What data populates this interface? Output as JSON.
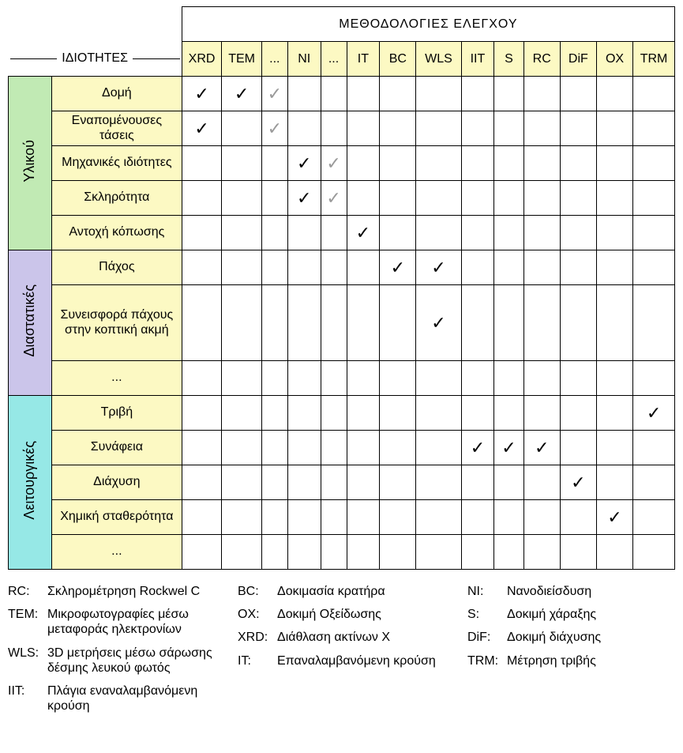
{
  "colors": {
    "header_bg": "#fcf9c3",
    "cat1_bg": "#c1eab4",
    "cat2_bg": "#cbc5ea",
    "cat3_bg": "#96e8e6",
    "gray_check": "#9a9a9a",
    "border": "#000000",
    "background": "#ffffff"
  },
  "fonts": {
    "base_size_pt": 12,
    "header_size_pt": 13
  },
  "header": {
    "methods_title": "ΜΕΘΟΔΟΛΟΓΙΕΣ ΕΛΕΓΧΟΥ",
    "properties_title": "ΙΔΙΟΤΗΤΕΣ"
  },
  "methods": [
    "XRD",
    "TEM",
    "...",
    "NI",
    "...",
    "IT",
    "BC",
    "WLS",
    "IIT",
    "S",
    "RC",
    "DiF",
    "OX",
    "TRM"
  ],
  "categories": [
    {
      "key": "material",
      "label": "Υλικού",
      "bg": "#c1eab4",
      "rows": [
        {
          "label": "Δομή",
          "cells": [
            "b",
            "b",
            "g",
            "",
            "",
            "",
            "",
            "",
            "",
            "",
            "",
            "",
            "",
            ""
          ]
        },
        {
          "label": "Εναπομένουσες τάσεις",
          "cells": [
            "b",
            "",
            "g",
            "",
            "",
            "",
            "",
            "",
            "",
            "",
            "",
            "",
            "",
            ""
          ]
        },
        {
          "label": "Μηχανικές ιδιότητες",
          "cells": [
            "",
            "",
            "",
            "b",
            "g",
            "",
            "",
            "",
            "",
            "",
            "",
            "",
            "",
            ""
          ]
        },
        {
          "label": "Σκληρότητα",
          "cells": [
            "",
            "",
            "",
            "b",
            "g",
            "",
            "",
            "",
            "",
            "",
            "",
            "",
            "",
            ""
          ]
        },
        {
          "label": "Αντοχή κόπωσης",
          "cells": [
            "",
            "",
            "",
            "",
            "",
            "b",
            "",
            "",
            "",
            "",
            "",
            "",
            "",
            ""
          ]
        }
      ]
    },
    {
      "key": "dimensional",
      "label": "Διαστατικές",
      "bg": "#cbc5ea",
      "rows": [
        {
          "label": "Πάχος",
          "cells": [
            "",
            "",
            "",
            "",
            "",
            "",
            "b",
            "b",
            "",
            "",
            "",
            "",
            "",
            ""
          ]
        },
        {
          "label": "Συνεισφορά πάχους στην κοπτική ακμή",
          "cells": [
            "",
            "",
            "",
            "",
            "",
            "",
            "",
            "b",
            "",
            "",
            "",
            "",
            "",
            ""
          ]
        },
        {
          "label": "...",
          "cells": [
            "",
            "",
            "",
            "",
            "",
            "",
            "",
            "",
            "",
            "",
            "",
            "",
            "",
            ""
          ]
        }
      ]
    },
    {
      "key": "functional",
      "label": "Λειτουργικές",
      "bg": "#96e8e6",
      "rows": [
        {
          "label": "Τριβή",
          "cells": [
            "",
            "",
            "",
            "",
            "",
            "",
            "",
            "",
            "",
            "",
            "",
            "",
            "",
            "b"
          ]
        },
        {
          "label": "Συνάφεια",
          "cells": [
            "",
            "",
            "",
            "",
            "",
            "",
            "",
            "",
            "b",
            "b",
            "b",
            "",
            "",
            ""
          ]
        },
        {
          "label": "Διάχυση",
          "cells": [
            "",
            "",
            "",
            "",
            "",
            "",
            "",
            "",
            "",
            "",
            "",
            "b",
            "",
            ""
          ]
        },
        {
          "label": "Χημική σταθερότητα",
          "cells": [
            "",
            "",
            "",
            "",
            "",
            "",
            "",
            "",
            "",
            "",
            "",
            "",
            "b",
            ""
          ]
        },
        {
          "label": "...",
          "cells": [
            "",
            "",
            "",
            "",
            "",
            "",
            "",
            "",
            "",
            "",
            "",
            "",
            "",
            ""
          ]
        }
      ]
    }
  ],
  "legend": {
    "col1": [
      {
        "abbr": "RC:",
        "text": "Σκληρομέτρηση Rockwel C"
      },
      {
        "abbr": "TEM:",
        "text": "Μικροφωτογραφίες μέσω μεταφοράς ηλεκτρονίων"
      },
      {
        "abbr": "WLS:",
        "text": "3D μετρήσεις μέσω σάρωσης δέσμης λευκού φωτός"
      },
      {
        "abbr": "IIT:",
        "text": "Πλάγια εναναλαμβανόμενη κρούση"
      }
    ],
    "col2": [
      {
        "abbr": "BC:",
        "text": "Δοκιμασία κρατήρα"
      },
      {
        "abbr": "OX:",
        "text": "Δοκιμή Οξείδωσης"
      },
      {
        "abbr": "XRD:",
        "text": "Διάθλαση ακτίνων Χ"
      },
      {
        "abbr": "IT:",
        "text": "Επαναλαμβανόμενη κρούση"
      }
    ],
    "col3": [
      {
        "abbr": "NI:",
        "text": "Νανοδιείσδυση"
      },
      {
        "abbr": "S:",
        "text": "Δοκιμή χάραξης"
      },
      {
        "abbr": "DiF:",
        "text": "Δοκιμή διάχυσης"
      },
      {
        "abbr": "TRM:",
        "text": "Μέτρηση τριβής"
      }
    ]
  }
}
